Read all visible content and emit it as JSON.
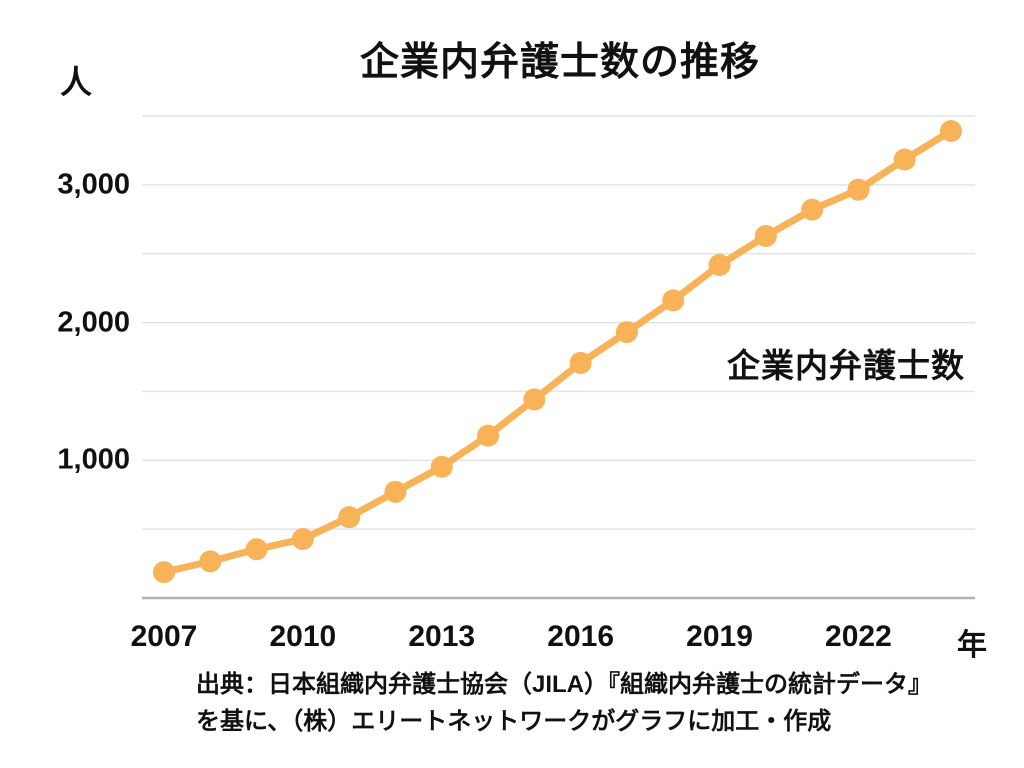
{
  "title": "企業内弁護士数の推移",
  "y_unit_label": "人",
  "x_unit_label": "年",
  "legend_label": "企業内弁護士数",
  "source": {
    "line1": "出典：日本組織内弁護士協会（JILA）『組織内弁護士の統計データ』",
    "line2": "を基に、（株）エリートネットワークがグラフに加工・作成"
  },
  "colors": {
    "series": "#F8B258",
    "grid": "#E4E4E4",
    "axis": "#B3B3B3",
    "text": "#111111"
  },
  "chart_data": {
    "type": "line",
    "title": "企業内弁護士数の推移",
    "xlabel": "年",
    "ylabel": "人",
    "ylim": [
      0,
      3500
    ],
    "grid": true,
    "grid_step": 500,
    "legend_position": "right-middle",
    "series": [
      {
        "name": "企業内弁護士数",
        "x": [
          2007,
          2008,
          2009,
          2010,
          2011,
          2012,
          2013,
          2014,
          2015,
          2016,
          2017,
          2018,
          2019,
          2020,
          2021,
          2022,
          2023,
          2024
        ],
        "values": [
          188,
          266,
          354,
          428,
          587,
          771,
          953,
          1179,
          1442,
          1707,
          1931,
          2161,
          2418,
          2629,
          2820,
          2965,
          3184,
          3391
        ]
      }
    ],
    "xticks": [
      {
        "value": 2007,
        "label": "2007"
      },
      {
        "value": 2010,
        "label": "2010"
      },
      {
        "value": 2013,
        "label": "2013"
      },
      {
        "value": 2016,
        "label": "2016"
      },
      {
        "value": 2019,
        "label": "2019"
      },
      {
        "value": 2022,
        "label": "2022"
      }
    ],
    "yticks": [
      {
        "value": 1000,
        "label": "1,000"
      },
      {
        "value": 2000,
        "label": "2,000"
      },
      {
        "value": 3000,
        "label": "3,000"
      }
    ]
  }
}
